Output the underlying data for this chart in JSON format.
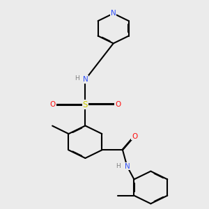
{
  "background_color": "#ebebeb",
  "atom_colors": {
    "C": "#000000",
    "N": "#3050F8",
    "O": "#FF0D0D",
    "S": "#FFFF30",
    "H": "#808080"
  },
  "bond_lw": 1.5,
  "dbl_sep": 0.018,
  "figsize": [
    3.0,
    3.0
  ],
  "dpi": 100,
  "xlim": [
    0,
    10
  ],
  "ylim": [
    0,
    10
  ]
}
